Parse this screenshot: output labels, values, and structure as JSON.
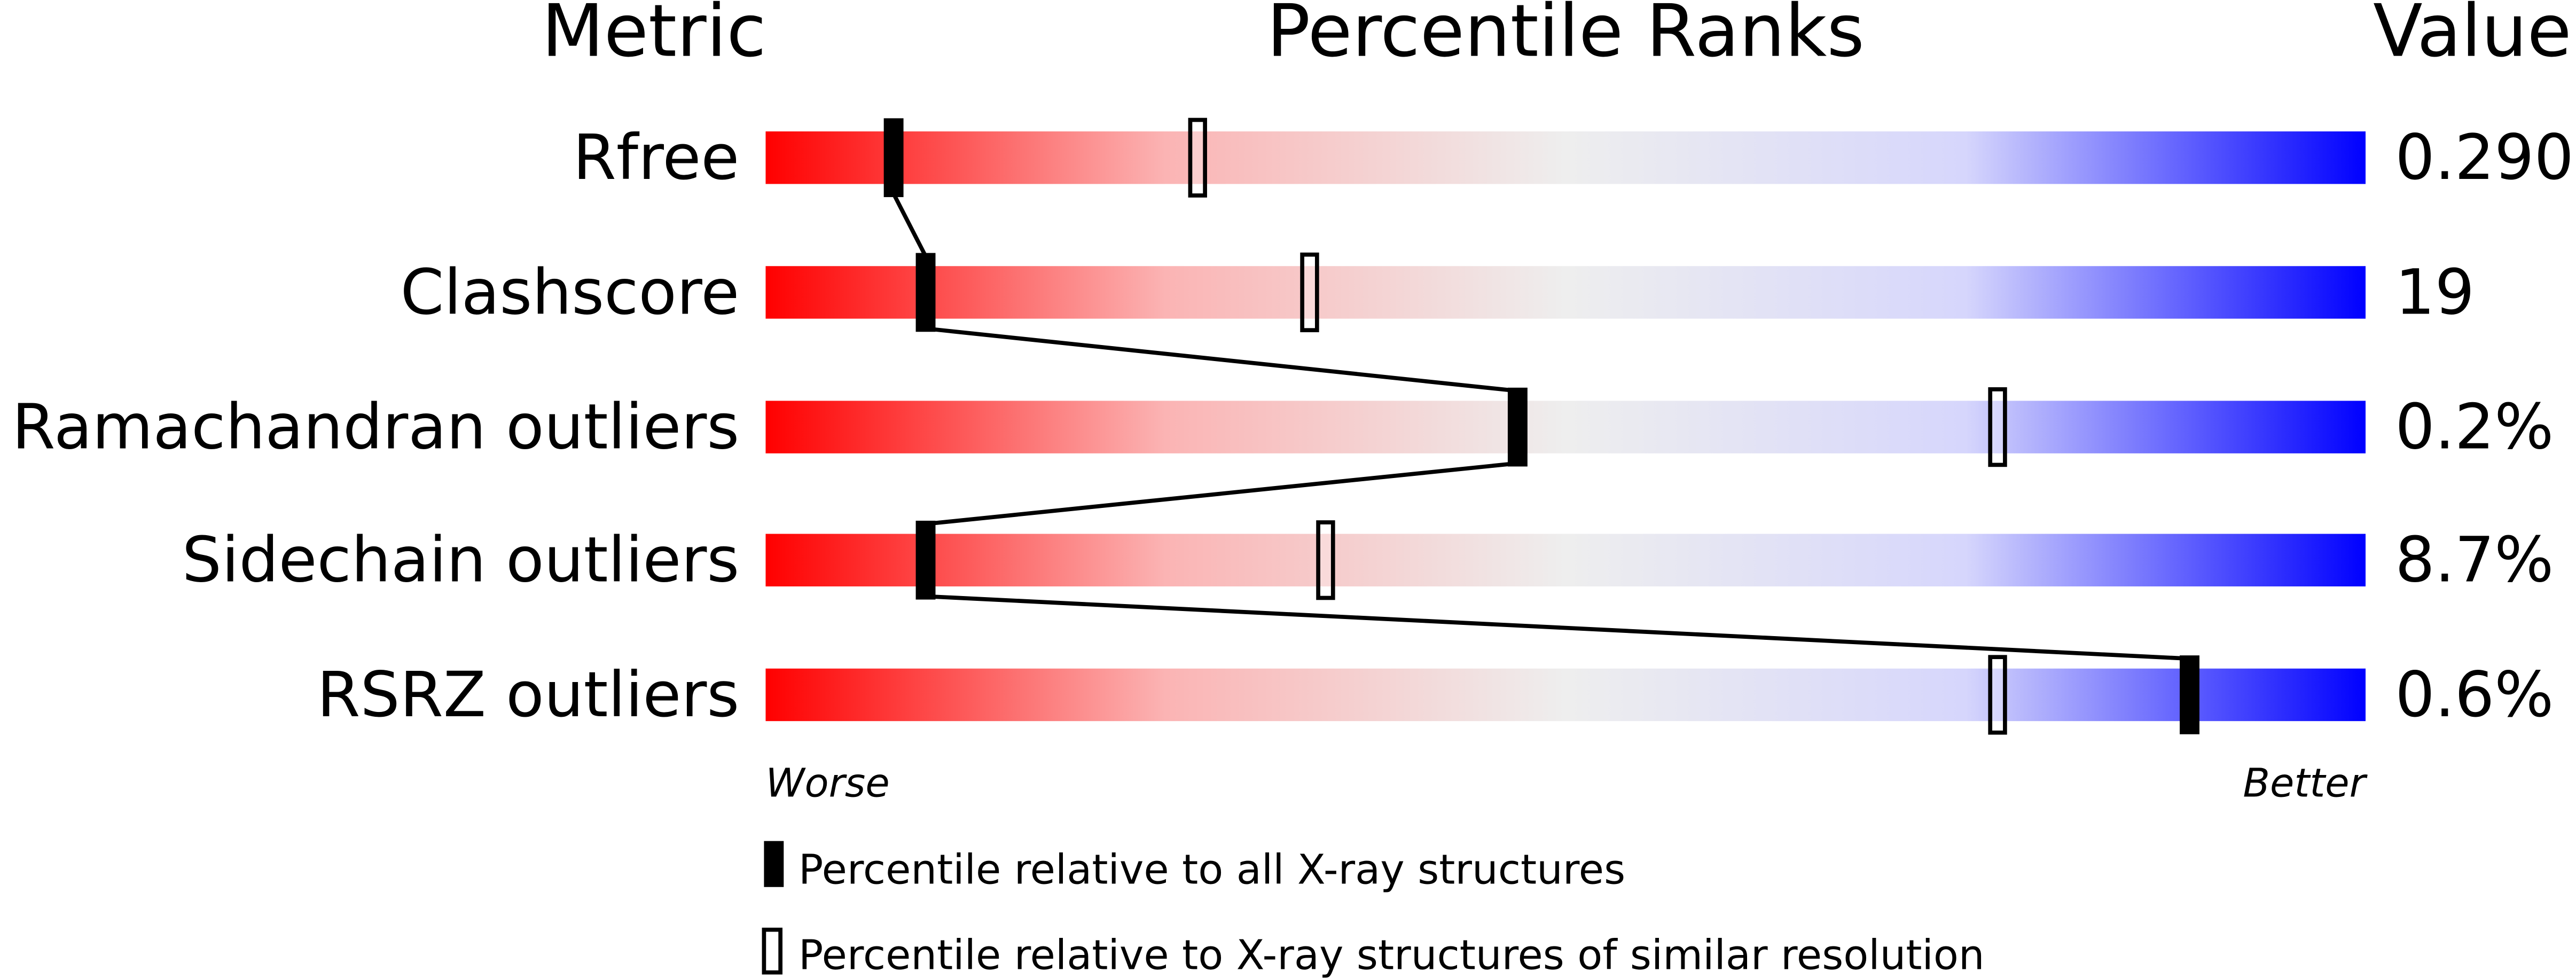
{
  "chart_data": {
    "type": "percentile-bar",
    "headers": {
      "metric": "Metric",
      "ranks": "Percentile Ranks",
      "value": "Value"
    },
    "axis": {
      "worse": "Worse",
      "better": "Better",
      "range": [
        0,
        100
      ]
    },
    "gradient_colors": [
      "#ff0000",
      "#f0f0f0",
      "#d8d8ff",
      "#0000ff"
    ],
    "metrics": [
      {
        "name": "Rfree",
        "value": "0.290",
        "percentile_all": 8,
        "percentile_similar": 27
      },
      {
        "name": "Clashscore",
        "value": "19",
        "percentile_all": 10,
        "percentile_similar": 34
      },
      {
        "name": "Ramachandran outliers",
        "value": "0.2%",
        "percentile_all": 47,
        "percentile_similar": 77
      },
      {
        "name": "Sidechain outliers",
        "value": "8.7%",
        "percentile_all": 10,
        "percentile_similar": 35
      },
      {
        "name": "RSRZ outliers",
        "value": "0.6%",
        "percentile_all": 89,
        "percentile_similar": 77
      }
    ],
    "legend": {
      "all": "Percentile relative to all X-ray structures",
      "similar": "Percentile relative to X-ray structures of similar resolution"
    }
  }
}
